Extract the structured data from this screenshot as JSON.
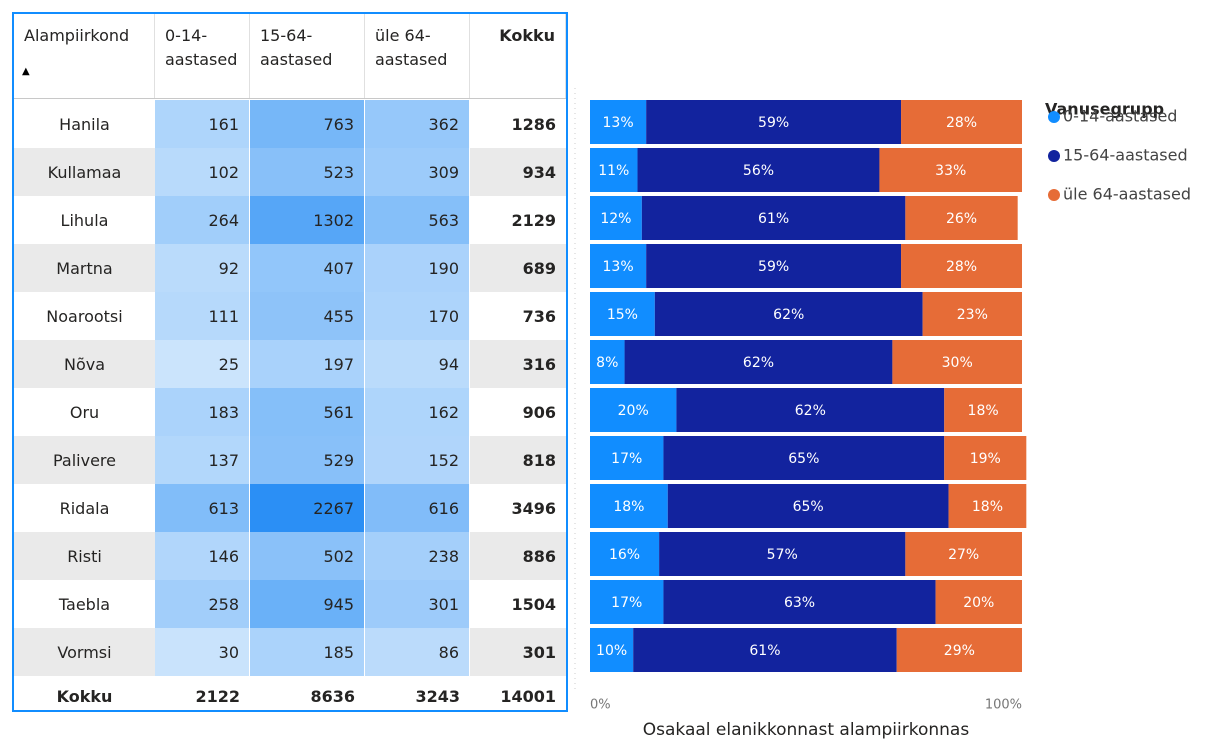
{
  "table": {
    "header": [
      "Alampiirkond",
      "0-14-aastased",
      "15-64-aastased",
      "üle 64-aastased",
      "Kokku"
    ],
    "rows": [
      [
        "Hanila",
        161,
        763,
        362,
        1286
      ],
      [
        "Kullamaa",
        102,
        523,
        309,
        934
      ],
      [
        "Lihula",
        264,
        1302,
        563,
        2129
      ],
      [
        "Martna",
        92,
        407,
        190,
        689
      ],
      [
        "Noarootsi",
        111,
        455,
        170,
        736
      ],
      [
        "Nõva",
        25,
        197,
        94,
        316
      ],
      [
        "Oru",
        183,
        561,
        162,
        906
      ],
      [
        "Palivere",
        137,
        529,
        152,
        818
      ],
      [
        "Ridala",
        613,
        2267,
        616,
        3496
      ],
      [
        "Risti",
        146,
        502,
        238,
        886
      ],
      [
        "Taebla",
        258,
        945,
        301,
        1504
      ],
      [
        "Vormsi",
        30,
        185,
        86,
        301
      ]
    ],
    "total": [
      "Kokku",
      2122,
      8636,
      3243,
      14001
    ]
  },
  "chart_data": {
    "type": "bar",
    "orientation": "horizontal",
    "stacked": true,
    "x_label": "Osakaal elanikkonnast alampiirkonnas",
    "legend_title": "Vanusegrupp",
    "legend": "right",
    "xlim": [
      0,
      100
    ],
    "xticks": [
      {
        "value": 0,
        "label": "0%"
      },
      {
        "value": 100,
        "label": "100%"
      }
    ],
    "series": [
      {
        "name": "0-14-aastased",
        "color": "#118dff",
        "values": [
          13,
          11,
          12,
          13,
          15,
          8,
          20,
          17,
          18,
          16,
          17,
          10
        ],
        "value_labels": [
          "13%",
          "11%",
          "12%",
          "13%",
          "15%",
          "8%",
          "20%",
          "17%",
          "18%",
          "16%",
          "17%",
          "10%"
        ]
      },
      {
        "name": "15-64-aastased",
        "color": "#12239e",
        "values": [
          59,
          56,
          61,
          59,
          62,
          62,
          62,
          65,
          65,
          57,
          63,
          61
        ],
        "value_labels": [
          "59%",
          "56%",
          "61%",
          "59%",
          "62%",
          "62%",
          "62%",
          "65%",
          "65%",
          "57%",
          "63%",
          "61%"
        ]
      },
      {
        "name": "üle 64-aastased",
        "color": "#e66c37",
        "values": [
          28,
          33,
          26,
          28,
          23,
          30,
          18,
          19,
          18,
          27,
          20,
          29
        ],
        "value_labels": [
          "28%",
          "33%",
          "26%",
          "28%",
          "23%",
          "30%",
          "18%",
          "19%",
          "18%",
          "27%",
          "20%",
          "29%"
        ]
      }
    ]
  }
}
